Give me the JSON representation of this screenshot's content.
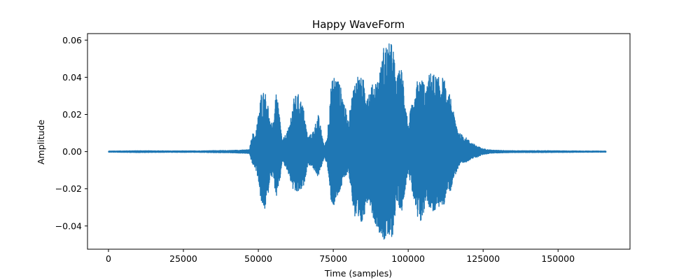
{
  "chart_data": {
    "type": "line",
    "title": "Happy WaveForm",
    "xlabel": "Time (samples)",
    "ylabel": "Amplitude",
    "xlim": [
      -7000,
      174000
    ],
    "ylim": [
      -0.0525,
      0.0635
    ],
    "x_ticks": [
      0,
      25000,
      50000,
      75000,
      100000,
      125000,
      150000
    ],
    "x_tick_labels": [
      "0",
      "25000",
      "50000",
      "75000",
      "100000",
      "125000",
      "150000"
    ],
    "y_ticks": [
      -0.04,
      -0.02,
      0.0,
      0.02,
      0.04,
      0.06
    ],
    "y_tick_labels": [
      "−0.04",
      "−0.02",
      "0.00",
      "0.02",
      "0.04",
      "0.06"
    ],
    "grid": false,
    "series_color": "#1f77b4",
    "samples_total": 166000,
    "series": [
      {
        "envelope_x": [
          0,
          10000,
          20000,
          30000,
          36500,
          40000,
          47000,
          48000,
          49000,
          50000,
          51000,
          52000,
          53000,
          54000,
          55000,
          56000,
          57000,
          58000,
          60000,
          62000,
          63500,
          65000,
          66500,
          68000,
          70000,
          72000,
          73000,
          74000,
          75000,
          76500,
          78000,
          80000,
          81000,
          82000,
          83000,
          84000,
          85000,
          86000,
          87000,
          88000,
          89000,
          90000,
          91000,
          92000,
          93000,
          94000,
          95000,
          96000,
          97000,
          98000,
          99000,
          100000,
          101000,
          102000,
          103000,
          104000,
          105000,
          106000,
          107000,
          108000,
          109000,
          110000,
          111000,
          112000,
          113000,
          114000,
          115000,
          117000,
          119000,
          121000,
          123000,
          125000,
          128000,
          135000,
          145000,
          155000,
          166000
        ],
        "upper": [
          0.0003,
          0.0005,
          0.0004,
          0.0004,
          0.0006,
          0.0006,
          0.001,
          0.01,
          0.009,
          0.02,
          0.032,
          0.033,
          0.029,
          0.014,
          0.018,
          0.032,
          0.021,
          0.006,
          0.012,
          0.03,
          0.031,
          0.024,
          0.008,
          0.01,
          0.02,
          0.003,
          0.008,
          0.033,
          0.041,
          0.04,
          0.032,
          0.016,
          0.028,
          0.037,
          0.042,
          0.04,
          0.039,
          0.035,
          0.033,
          0.036,
          0.038,
          0.04,
          0.047,
          0.059,
          0.057,
          0.059,
          0.057,
          0.038,
          0.044,
          0.045,
          0.03,
          0.014,
          0.025,
          0.025,
          0.038,
          0.038,
          0.04,
          0.032,
          0.042,
          0.043,
          0.041,
          0.04,
          0.04,
          0.04,
          0.028,
          0.032,
          0.022,
          0.01,
          0.008,
          0.005,
          0.003,
          0.0015,
          0.0008,
          0.0005,
          0.0005,
          0.0004,
          0.0003
        ],
        "lower": [
          -0.0003,
          -0.0005,
          -0.0004,
          -0.0004,
          -0.0006,
          -0.0006,
          -0.001,
          -0.007,
          -0.009,
          -0.015,
          -0.029,
          -0.032,
          -0.027,
          -0.012,
          -0.015,
          -0.025,
          -0.019,
          -0.005,
          -0.012,
          -0.023,
          -0.022,
          -0.02,
          -0.007,
          -0.008,
          -0.014,
          -0.003,
          -0.007,
          -0.025,
          -0.03,
          -0.025,
          -0.018,
          -0.01,
          -0.022,
          -0.035,
          -0.042,
          -0.041,
          -0.038,
          -0.028,
          -0.026,
          -0.034,
          -0.039,
          -0.042,
          -0.046,
          -0.048,
          -0.047,
          -0.049,
          -0.044,
          -0.028,
          -0.03,
          -0.032,
          -0.02,
          -0.01,
          -0.02,
          -0.027,
          -0.038,
          -0.039,
          -0.036,
          -0.025,
          -0.03,
          -0.032,
          -0.033,
          -0.03,
          -0.03,
          -0.029,
          -0.02,
          -0.022,
          -0.015,
          -0.008,
          -0.006,
          -0.004,
          -0.003,
          -0.0015,
          -0.0008,
          -0.0005,
          -0.0005,
          -0.0004,
          -0.0003
        ]
      }
    ]
  }
}
